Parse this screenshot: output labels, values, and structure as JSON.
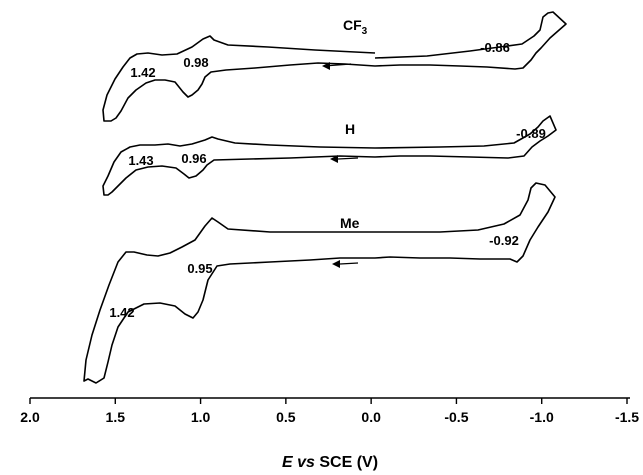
{
  "chart_data": {
    "type": "line",
    "xaxis": {
      "label_italic": "E vs",
      "label_rest": "SCE (V)",
      "xlim": [
        2.0,
        -1.5
      ],
      "reversed": true,
      "ticks": [
        2.0,
        1.5,
        1.0,
        0.5,
        0.0,
        -0.5,
        -1.0,
        -1.5
      ],
      "tick_labels": [
        "2.0",
        "1.5",
        "1.0",
        "0.5",
        "0.0",
        "-0.5",
        "-1.0",
        "-1.5"
      ]
    },
    "yaxis": {
      "shown": false
    },
    "grid": false,
    "series": [
      {
        "name": "CF3",
        "label_main": "CF",
        "label_sub": "3",
        "peaks": [
          {
            "text": "1.42",
            "E": 1.42
          },
          {
            "text": "0.98",
            "E": 0.98
          },
          {
            "text": "-0.86",
            "E": -0.86
          }
        ]
      },
      {
        "name": "H",
        "label_main": "H",
        "label_sub": "",
        "peaks": [
          {
            "text": "1.43",
            "E": 1.43
          },
          {
            "text": "0.96",
            "E": 0.96
          },
          {
            "text": "-0.89",
            "E": -0.89
          }
        ]
      },
      {
        "name": "Me",
        "label_main": "Me",
        "label_sub": "",
        "peaks": [
          {
            "text": "0.95",
            "E": 0.95
          },
          {
            "text": "1.42",
            "E": 1.42
          },
          {
            "text": "-0.92",
            "E": -0.92
          }
        ]
      }
    ]
  }
}
